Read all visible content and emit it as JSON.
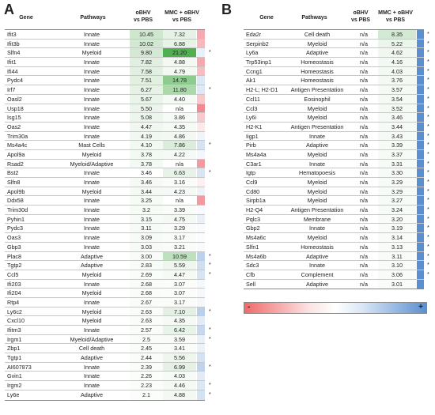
{
  "panelA": {
    "letter": "A",
    "headers": {
      "gene": "Gene",
      "pathways": "Pathways",
      "col1a": "oBHV",
      "col1b": "vs PBS",
      "col2a": "MMC + oBHV",
      "col2b": "vs PBS"
    },
    "rows": [
      {
        "gene": "Ifit3",
        "pathway": "Innate",
        "v1": "10.45",
        "v2": "7.32",
        "c1": "#cfe6cf",
        "c2": "#e6f2e6",
        "bar": "#f4aab0",
        "star": ""
      },
      {
        "gene": "Ifit3b",
        "pathway": "Innate",
        "v1": "10.02",
        "v2": "6.88",
        "c1": "#d2e8d2",
        "c2": "#e8f3e8",
        "bar": "#f6b8bd",
        "star": ""
      },
      {
        "gene": "Slfn4",
        "pathway": "Myeloid",
        "v1": "9.80",
        "v2": "21.20",
        "c1": "#d4e9d4",
        "c2": "#4fb04f",
        "bar": "#e8f0f8",
        "star": "*"
      },
      {
        "gene": "Ifit1",
        "pathway": "Innate",
        "v1": "7.82",
        "v2": "4.88",
        "c1": "#e0efe0",
        "c2": "#f3f8f3",
        "bar": "#f4a9af",
        "star": ""
      },
      {
        "gene": "Ifi44",
        "pathway": "Innate",
        "v1": "7.58",
        "v2": "4.79",
        "c1": "#e1f0e1",
        "c2": "#f4f9f4",
        "bar": "#f7bec2",
        "star": ""
      },
      {
        "gene": "Pydc4",
        "pathway": "Innate",
        "v1": "7.51",
        "v2": "14.78",
        "c1": "#e2f0e2",
        "c2": "#8ecb8e",
        "bar": "#dce7f4",
        "star": ""
      },
      {
        "gene": "Irf7",
        "pathway": "Innate",
        "v1": "6.27",
        "v2": "11.80",
        "c1": "#e7f2e7",
        "c2": "#acd8ac",
        "bar": "#dfe9f5",
        "star": "*"
      },
      {
        "gene": "Oasl2",
        "pathway": "Innate",
        "v1": "5.67",
        "v2": "4.40",
        "c1": "#eaf4ea",
        "c2": "#f5faf5",
        "bar": "#f8c8cb",
        "star": ""
      },
      {
        "gene": "Usp18",
        "pathway": "Innate",
        "v1": "5.50",
        "v2": "n/a",
        "c1": "#ebf5eb",
        "c2": "#ffffff",
        "bar": "#f08a92",
        "star": ""
      },
      {
        "gene": "Isg15",
        "pathway": "Innate",
        "v1": "5.08",
        "v2": "3.86",
        "c1": "#edf6ed",
        "c2": "#f7fbf7",
        "bar": "#f8c9cc",
        "star": ""
      },
      {
        "gene": "Oas2",
        "pathway": "Innate",
        "v1": "4.47",
        "v2": "4.35",
        "c1": "#f0f7f0",
        "c2": "#f5faf5",
        "bar": "#fde9ea",
        "star": ""
      },
      {
        "gene": "Trim30a",
        "pathway": "Innate",
        "v1": "4.19",
        "v2": "4.86",
        "c1": "#f1f8f1",
        "c2": "#f3f8f3",
        "bar": "#f1f5fa",
        "star": ""
      },
      {
        "gene": "Ms4a4c",
        "pathway": "Mast Cells",
        "v1": "4.10",
        "v2": "7.86",
        "c1": "#f2f8f2",
        "c2": "#dcecdc",
        "bar": "#d6e3f2",
        "star": "*"
      },
      {
        "gene": "Apol9a",
        "pathway": "Myeloid",
        "v1": "3.78",
        "v2": "4.22",
        "c1": "#f3f9f3",
        "c2": "#f6faf6",
        "bar": "#f3f7fb",
        "star": ""
      },
      {
        "gene": "Rsad2",
        "pathway": "Myeloid/Adaptive",
        "v1": "3.78",
        "v2": "n/a",
        "c1": "#f3f9f3",
        "c2": "#ffffff",
        "bar": "#f39aa1",
        "star": ""
      },
      {
        "gene": "Bst2",
        "pathway": "Innate",
        "v1": "3.46",
        "v2": "6.63",
        "c1": "#f5fa f5",
        "c2": "#e8f3e8",
        "bar": "#d9e5f3",
        "star": "*"
      },
      {
        "gene": "Slfn8",
        "pathway": "Innate",
        "v1": "3.46",
        "v2": "3.16",
        "c1": "#f5faf5",
        "c2": "#fafcfa",
        "bar": "#fdf0f1",
        "star": ""
      },
      {
        "gene": "Apol9b",
        "pathway": "Myeloid",
        "v1": "3.44",
        "v2": "4.23",
        "c1": "#f5faf5",
        "c2": "#f6faf6",
        "bar": "#eef3f9",
        "star": ""
      },
      {
        "gene": "Ddx58",
        "pathway": "Innate",
        "v1": "3.25",
        "v2": "n/a",
        "c1": "#f6fbf6",
        "c2": "#ffffff",
        "bar": "#f39aa1",
        "star": ""
      },
      {
        "gene": "Trim30d",
        "pathway": "Innate",
        "v1": "3.2",
        "v2": "3.39",
        "c1": "#f6fbf6",
        "c2": "#f9fcf9",
        "bar": "#f8fafd",
        "star": ""
      },
      {
        "gene": "Pyhin1",
        "pathway": "Innate",
        "v1": "3.15",
        "v2": "4.75",
        "c1": "#f7fbf7",
        "c2": "#f4f9f4",
        "bar": "#e9f0f8",
        "star": ""
      },
      {
        "gene": "Pydc3",
        "pathway": "Innate",
        "v1": "3.11",
        "v2": "3.29",
        "c1": "#f7fbf7",
        "c2": "#f9fcf9",
        "bar": "#f8fafd",
        "star": ""
      },
      {
        "gene": "Oas3",
        "pathway": "Innate",
        "v1": "3.09",
        "v2": "3.17",
        "c1": "#f7fbf7",
        "c2": "#fafcfa",
        "bar": "#fbfcfe",
        "star": ""
      },
      {
        "gene": "Gbp3",
        "pathway": "Innate",
        "v1": "3.03",
        "v2": "3.21",
        "c1": "#f7fbf7",
        "c2": "#fafcfa",
        "bar": "#f8fafd",
        "star": ""
      },
      {
        "gene": "Plac8",
        "pathway": "Adaptive",
        "v1": "3.00",
        "v2": "10.59",
        "c1": "#f8fbf8",
        "c2": "#bde0bd",
        "bar": "#bcd2ec",
        "star": "*"
      },
      {
        "gene": "Tgtp2",
        "pathway": "Adaptive",
        "v1": "2.83",
        "v2": "5.59",
        "c1": "#f8fcf8",
        "c2": "#eef6ee",
        "bar": "#cfdff0",
        "star": "*"
      },
      {
        "gene": "Ccl5",
        "pathway": "Myeloid",
        "v1": "2.69",
        "v2": "4.47",
        "c1": "#f9fcf9",
        "c2": "#f5faf5",
        "bar": "#d7e4f2",
        "star": "*"
      },
      {
        "gene": "Ifi203",
        "pathway": "Innate",
        "v1": "2.68",
        "v2": "3.07",
        "c1": "#f9fcf9",
        "c2": "#fbfdfb",
        "bar": "#f6f9fc",
        "star": ""
      },
      {
        "gene": "Ifi204",
        "pathway": "Myeloid",
        "v1": "2.68",
        "v2": "3.07",
        "c1": "#f9fcf9",
        "c2": "#fbfdfb",
        "bar": "#f6f9fc",
        "star": ""
      },
      {
        "gene": "Rtp4",
        "pathway": "Innate",
        "v1": "2.67",
        "v2": "3.17",
        "c1": "#f9fcf9",
        "c2": "#fafcfa",
        "bar": "#f4f8fc",
        "star": ""
      },
      {
        "gene": "Ly6c2",
        "pathway": "Myeloid",
        "v1": "2.63",
        "v2": "7.10",
        "c1": "#f9fcf9",
        "c2": "#e3f0e3",
        "bar": "#b9d0eb",
        "star": "*"
      },
      {
        "gene": "Cxcl10",
        "pathway": "Myeloid",
        "v1": "2.63",
        "v2": "4.35",
        "c1": "#f9fcf9",
        "c2": "#f5faf5",
        "bar": "#e2ebf6",
        "star": ""
      },
      {
        "gene": "Ifitm3",
        "pathway": "Innate",
        "v1": "2.57",
        "v2": "6.42",
        "c1": "#f9fcf9",
        "c2": "#e9f4e9",
        "bar": "#c5d8ee",
        "star": "*"
      },
      {
        "gene": "Irgm1",
        "pathway": "Myeloid/Adaptive",
        "v1": "2.5",
        "v2": "3.59",
        "c1": "#fafcfa",
        "c2": "#f8fbf8",
        "bar": "#e9f0f8",
        "star": "*"
      },
      {
        "gene": "Zbp1",
        "pathway": "Cell death",
        "v1": "2.45",
        "v2": "3.41",
        "c1": "#fafcfa",
        "c2": "#f9fcf9",
        "bar": "#ecf2f9",
        "star": ""
      },
      {
        "gene": "Tgtp1",
        "pathway": "Adaptive",
        "v1": "2.44",
        "v2": "5.56",
        "c1": "#fafcfa",
        "c2": "#eef6ee",
        "bar": "#d4e2f1",
        "star": ""
      },
      {
        "gene": "AI607873",
        "pathway": "Innate",
        "v1": "2.39",
        "v2": "6.99",
        "c1": "#fafcfa",
        "c2": "#e4f1e4",
        "bar": "#bfd4ec",
        "star": "*"
      },
      {
        "gene": "Gvin1",
        "pathway": "Innate",
        "v1": "2.26",
        "v2": "4.03",
        "c1": "#fafdfa",
        "c2": "#f7fbf7",
        "bar": "#e2ebf6",
        "star": ""
      },
      {
        "gene": "Irgm2",
        "pathway": "Innate",
        "v1": "2.23",
        "v2": "4.46",
        "c1": "#fafdfa",
        "c2": "#f5faf5",
        "bar": "#dce7f4",
        "star": "*"
      },
      {
        "gene": "Ly6e",
        "pathway": "Adaptive",
        "v1": "2.1",
        "v2": "4.88",
        "c1": "#fbfdfb",
        "c2": "#f3f8f3",
        "bar": "#d4e2f1",
        "star": "*"
      }
    ]
  },
  "panelB": {
    "letter": "B",
    "headers": {
      "gene": "Gene",
      "pathways": "Pathways",
      "col1a": "oBHV",
      "col1b": "vs PBS",
      "col2a": "MMC + oBHV",
      "col2b": "vs PBS"
    },
    "rows": [
      {
        "gene": "Eda2r",
        "pathway": "Cell death",
        "v1": "n/a",
        "v2": "8.35",
        "c2": "#d4e9d4",
        "star": "*"
      },
      {
        "gene": "Serpinb2",
        "pathway": "Myeloid",
        "v1": "n/a",
        "v2": "5.22",
        "c2": "#ebf5eb",
        "star": "*"
      },
      {
        "gene": "Ly6a",
        "pathway": "Adaptive",
        "v1": "n/a",
        "v2": "4.62",
        "c2": "#eff7ef",
        "star": "*"
      },
      {
        "gene": "Trp53inp1",
        "pathway": "Homeostasis",
        "v1": "n/a",
        "v2": "4.16",
        "c2": "#f2f8f2",
        "star": "*"
      },
      {
        "gene": "Ccng1",
        "pathway": "Homeostasis",
        "v1": "n/a",
        "v2": "4.03",
        "c2": "#f3f9f3",
        "star": "*"
      },
      {
        "gene": "Ak1",
        "pathway": "Homeostasis",
        "v1": "n/a",
        "v2": "3.76",
        "c2": "#f4f9f4",
        "star": "*"
      },
      {
        "gene": "H2-L; H2-D1",
        "pathway": "Antigen Presentation",
        "v1": "n/a",
        "v2": "3.57",
        "c2": "#f5faf5",
        "star": "*"
      },
      {
        "gene": "Ccl11",
        "pathway": "Eosinophil",
        "v1": "n/a",
        "v2": "3.54",
        "c2": "#f5faf5",
        "star": "*"
      },
      {
        "gene": "Ccl3",
        "pathway": "Myeloid",
        "v1": "n/a",
        "v2": "3.52",
        "c2": "#f5faf5",
        "star": "*"
      },
      {
        "gene": "Ly6i",
        "pathway": "Myeloid",
        "v1": "n/a",
        "v2": "3.46",
        "c2": "#f6faf6",
        "star": "*"
      },
      {
        "gene": "H2-K1",
        "pathway": "Antigen Presentation",
        "v1": "n/a",
        "v2": "3.44",
        "c2": "#f6faf6",
        "star": "*"
      },
      {
        "gene": "Iigp1",
        "pathway": "Innate",
        "v1": "n/a",
        "v2": "3.43",
        "c2": "#f6faf6",
        "star": "*"
      },
      {
        "gene": "Pirb",
        "pathway": "Adaptive",
        "v1": "n/a",
        "v2": "3.39",
        "c2": "#f6fbf6",
        "star": "*"
      },
      {
        "gene": "Ms4a4a",
        "pathway": "Myeloid",
        "v1": "n/a",
        "v2": "3.37",
        "c2": "#f6fbf6",
        "star": "*"
      },
      {
        "gene": "C3ar1",
        "pathway": "Innate",
        "v1": "n/a",
        "v2": "3.31",
        "c2": "#f7fbf7",
        "star": "*"
      },
      {
        "gene": "Igtp",
        "pathway": "Hematopoesis",
        "v1": "n/a",
        "v2": "3.30",
        "c2": "#f7fbf7",
        "star": "*"
      },
      {
        "gene": "Ccl9",
        "pathway": "Myeloid",
        "v1": "n/a",
        "v2": "3.29",
        "c2": "#f7fbf7",
        "star": "*"
      },
      {
        "gene": "Cd80",
        "pathway": "Myeloid",
        "v1": "n/a",
        "v2": "3.29",
        "c2": "#f7fbf7",
        "star": "*"
      },
      {
        "gene": "Sirpb1a",
        "pathway": "Myeloid",
        "v1": "n/a",
        "v2": "3.27",
        "c2": "#f7fbf7",
        "star": "*"
      },
      {
        "gene": "H2-Q4",
        "pathway": "Antigen Presentation",
        "v1": "n/a",
        "v2": "3.24",
        "c2": "#f7fbf7",
        "star": "*"
      },
      {
        "gene": "Pqlc3",
        "pathway": "Membrane",
        "v1": "n/a",
        "v2": "3.20",
        "c2": "#f8fbf8",
        "star": "*"
      },
      {
        "gene": "Gbp2",
        "pathway": "Innate",
        "v1": "n/a",
        "v2": "3.19",
        "c2": "#f8fbf8",
        "star": "*"
      },
      {
        "gene": "Ms4a6c",
        "pathway": "Myeloid",
        "v1": "n/a",
        "v2": "3.14",
        "c2": "#f8fbf8",
        "star": "*"
      },
      {
        "gene": "Slfn1",
        "pathway": "Homeostasis",
        "v1": "n/a",
        "v2": "3.13",
        "c2": "#f8fbf8",
        "star": "*"
      },
      {
        "gene": "Ms4a6b",
        "pathway": "Adaptive",
        "v1": "n/a",
        "v2": "3.11",
        "c2": "#f8fbf8",
        "star": "*"
      },
      {
        "gene": "Sdc3",
        "pathway": "Innate",
        "v1": "n/a",
        "v2": "3.10",
        "c2": "#f8fbf8",
        "star": "*"
      },
      {
        "gene": "Cfb",
        "pathway": "Complement",
        "v1": "n/a",
        "v2": "3.06",
        "c2": "#f8fbf8",
        "star": "*"
      },
      {
        "gene": "Sell",
        "pathway": "Adaptive",
        "v1": "n/a",
        "v2": "3.01",
        "c2": "#f9fcf9",
        "star": ""
      }
    ],
    "bar_color": "#5b8fd0"
  },
  "legend": {
    "minus": "-",
    "plus": "+"
  }
}
